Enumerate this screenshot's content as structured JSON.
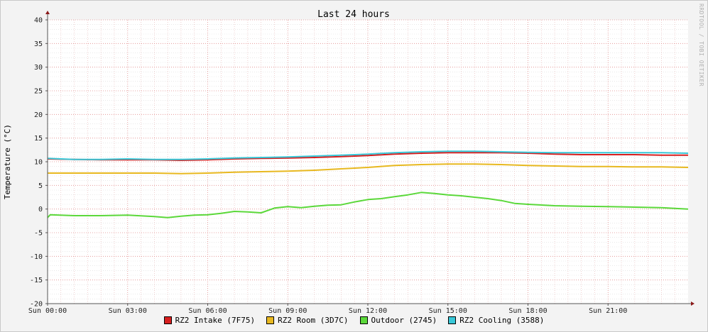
{
  "chart_data": {
    "type": "line",
    "title": "Last 24 hours",
    "ylabel": "Temperature (°C)",
    "xlabel": "",
    "watermark": "RRDTOOL / TOBI OETIKER",
    "ylim": [
      -20,
      40
    ],
    "xlim": [
      0,
      24
    ],
    "y_ticks": [
      "-20",
      "-15",
      "-10",
      "-5",
      "0",
      "5",
      "10",
      "15",
      "20",
      "25",
      "30",
      "35",
      "40"
    ],
    "x_ticks": [
      {
        "x": 0,
        "label": "Sun 00:00"
      },
      {
        "x": 3,
        "label": "Sun 03:00"
      },
      {
        "x": 6,
        "label": "Sun 06:00"
      },
      {
        "x": 9,
        "label": "Sun 09:00"
      },
      {
        "x": 12,
        "label": "Sun 12:00"
      },
      {
        "x": 15,
        "label": "Sun 15:00"
      },
      {
        "x": 18,
        "label": "Sun 18:00"
      },
      {
        "x": 21,
        "label": "Sun 21:00"
      }
    ],
    "grid": true,
    "legend_position": "bottom",
    "series": [
      {
        "name": "RZ2 Intake (7F75)",
        "color": "#d71e1e",
        "x": [
          0,
          1,
          2,
          3,
          4,
          5,
          6,
          7,
          8,
          9,
          10,
          11,
          12,
          13,
          14,
          15,
          16,
          17,
          18,
          19,
          20,
          21,
          22,
          23,
          24
        ],
        "y": [
          10.6,
          10.5,
          10.4,
          10.4,
          10.4,
          10.3,
          10.4,
          10.6,
          10.7,
          10.8,
          10.9,
          11.1,
          11.3,
          11.6,
          11.8,
          11.9,
          11.9,
          11.9,
          11.8,
          11.6,
          11.5,
          11.5,
          11.5,
          11.4,
          11.4
        ]
      },
      {
        "name": "RZ2 Room (3D7C)",
        "color": "#e8b820",
        "x": [
          0,
          1,
          2,
          3,
          4,
          5,
          6,
          7,
          8,
          9,
          10,
          11,
          12,
          13,
          14,
          15,
          16,
          17,
          18,
          19,
          20,
          21,
          22,
          23,
          24
        ],
        "y": [
          7.6,
          7.6,
          7.6,
          7.6,
          7.6,
          7.5,
          7.6,
          7.8,
          7.9,
          8.0,
          8.2,
          8.5,
          8.8,
          9.2,
          9.4,
          9.5,
          9.5,
          9.4,
          9.2,
          9.1,
          9.0,
          9.0,
          8.9,
          8.9,
          8.8
        ]
      },
      {
        "name": "Outdoor (2745)",
        "color": "#5bd83a",
        "x": [
          0,
          0.1,
          1,
          2,
          3,
          4,
          4.5,
          5,
          5.5,
          6,
          6.5,
          7,
          7.5,
          8,
          8.5,
          9,
          9.5,
          10,
          10.5,
          11,
          11.5,
          12,
          12.5,
          13,
          13.5,
          14,
          14.5,
          15,
          15.5,
          16,
          16.5,
          17,
          17.5,
          18,
          19,
          20,
          21,
          22,
          23,
          24
        ],
        "y": [
          -1.8,
          -1.2,
          -1.4,
          -1.4,
          -1.3,
          -1.6,
          -1.8,
          -1.5,
          -1.3,
          -1.2,
          -0.9,
          -0.5,
          -0.6,
          -0.8,
          0.2,
          0.5,
          0.3,
          0.6,
          0.8,
          0.9,
          1.5,
          2.0,
          2.2,
          2.6,
          3.0,
          3.5,
          3.3,
          3.0,
          2.8,
          2.5,
          2.2,
          1.8,
          1.2,
          1.0,
          0.7,
          0.6,
          0.5,
          0.4,
          0.3,
          0.0
        ]
      },
      {
        "name": "RZ2 Cooling (3588)",
        "color": "#38c8d8",
        "x": [
          0,
          1,
          2,
          3,
          4,
          5,
          6,
          7,
          8,
          9,
          10,
          11,
          12,
          13,
          14,
          15,
          16,
          17,
          18,
          19,
          20,
          21,
          22,
          23,
          24
        ],
        "y": [
          10.7,
          10.5,
          10.5,
          10.6,
          10.5,
          10.5,
          10.6,
          10.8,
          10.9,
          11.0,
          11.2,
          11.4,
          11.6,
          11.9,
          12.1,
          12.2,
          12.2,
          12.1,
          12.0,
          11.9,
          11.9,
          11.9,
          11.9,
          11.9,
          11.8
        ]
      }
    ]
  }
}
